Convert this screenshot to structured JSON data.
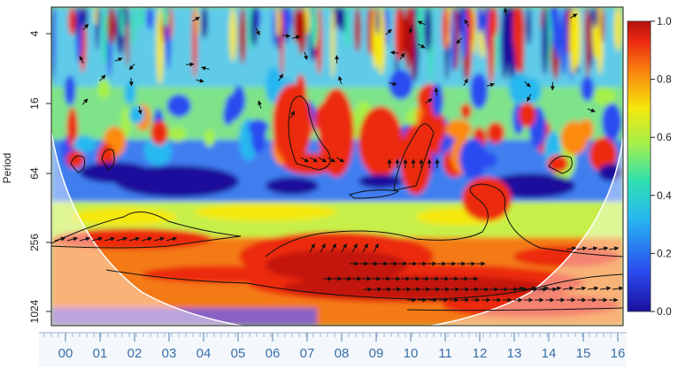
{
  "chart_data": {
    "type": "heatmap",
    "title": "",
    "xlabel": "",
    "ylabel": "Period",
    "x_tick_labels": [
      "00",
      "01",
      "02",
      "03",
      "04",
      "05",
      "06",
      "07",
      "08",
      "09",
      "10",
      "11",
      "12",
      "13",
      "14",
      "15",
      "16"
    ],
    "y_tick_labels": [
      "4",
      "16",
      "64",
      "256",
      "1024"
    ],
    "y_scale": "log2",
    "colorbar": {
      "min": 0.0,
      "max": 1.0,
      "ticks": [
        "0.0",
        "0.2",
        "0.4",
        "0.6",
        "0.8",
        "1.0"
      ],
      "colormap": [
        "#1a0f9c",
        "#2c4cf0",
        "#27b8f0",
        "#30e0b0",
        "#a6f04a",
        "#f4e80c",
        "#fb8a10",
        "#ec2a10",
        "#b4100e"
      ]
    },
    "cone_of_influence": true,
    "significance_contours": true,
    "phase_arrows": true
  }
}
